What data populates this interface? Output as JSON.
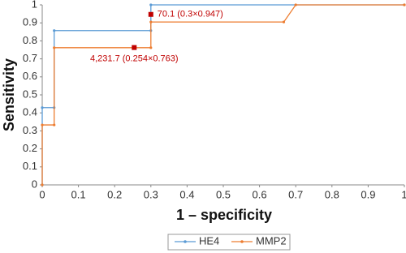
{
  "chart_data": {
    "type": "line",
    "xlabel": "1 – specificity",
    "ylabel": "Sensitivity",
    "xlim": [
      0,
      1
    ],
    "ylim": [
      0,
      1
    ],
    "xticks": [
      0,
      0.1,
      0.2,
      0.3,
      0.4,
      0.5,
      0.6,
      0.7,
      0.8,
      0.9,
      1
    ],
    "yticks": [
      0,
      0.1,
      0.2,
      0.3,
      0.4,
      0.5,
      0.6,
      0.7,
      0.8,
      0.9,
      1
    ],
    "series": [
      {
        "name": "HE4",
        "color": "#5b9bd5",
        "x": [
          0,
          0,
          0.033,
          0.033,
          0.3,
          0.3,
          1
        ],
        "values": [
          0,
          0.429,
          0.429,
          0.857,
          0.857,
          1,
          1
        ]
      },
      {
        "name": "MMP2",
        "color": "#ed7d31",
        "x": [
          0,
          0,
          0.033,
          0.033,
          0.3,
          0.3,
          0.667,
          0.7,
          1
        ],
        "values": [
          0,
          0.333,
          0.333,
          0.762,
          0.762,
          0.905,
          0.905,
          1,
          1
        ]
      }
    ],
    "annotations": [
      {
        "text": "70.1 (0.3×0.947)",
        "x": 0.3,
        "y": 0.947,
        "color": "#c00000"
      },
      {
        "text": "4,231.7 (0.254×0.763)",
        "x": 0.254,
        "y": 0.763,
        "color": "#c00000"
      }
    ]
  }
}
